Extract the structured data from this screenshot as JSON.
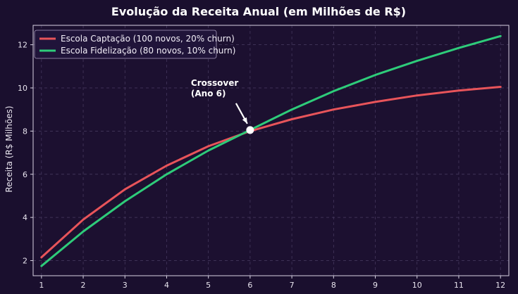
{
  "chart_data": {
    "type": "line",
    "title": "Evolução da Receita Anual (em Milhões de R$)",
    "xlabel": "",
    "ylabel": "Receita (R$ Milhões)",
    "x": [
      1,
      2,
      3,
      4,
      5,
      6,
      7,
      8,
      9,
      10,
      11,
      12
    ],
    "xlim": [
      0.8,
      12.2
    ],
    "ylim": [
      1.3,
      12.9
    ],
    "xticks": [
      "1",
      "2",
      "3",
      "4",
      "5",
      "6",
      "7",
      "8",
      "9",
      "10",
      "11",
      "12"
    ],
    "yticks": [
      2,
      4,
      6,
      8,
      10,
      12
    ],
    "ytick_labels": [
      "2",
      "4",
      "6",
      "8",
      "10",
      "12"
    ],
    "grid": true,
    "legend_position": "top-left",
    "series": [
      {
        "name": "Escola Captação (100 novos, 20% churn)",
        "color": "#e8545a",
        "values": [
          2.15,
          3.9,
          5.3,
          6.4,
          7.3,
          8.0,
          8.55,
          9.0,
          9.35,
          9.65,
          9.88,
          10.05
        ]
      },
      {
        "name": "Escola Fidelização (80 novos, 10% churn)",
        "color": "#2ecc7a",
        "values": [
          1.75,
          3.35,
          4.75,
          6.0,
          7.1,
          8.05,
          9.0,
          9.85,
          10.6,
          11.25,
          11.85,
          12.4
        ]
      }
    ],
    "annotations": [
      {
        "text_lines": [
          "Crossover",
          "(Ano 6)"
        ],
        "x": 6,
        "y": 8.05
      }
    ]
  }
}
